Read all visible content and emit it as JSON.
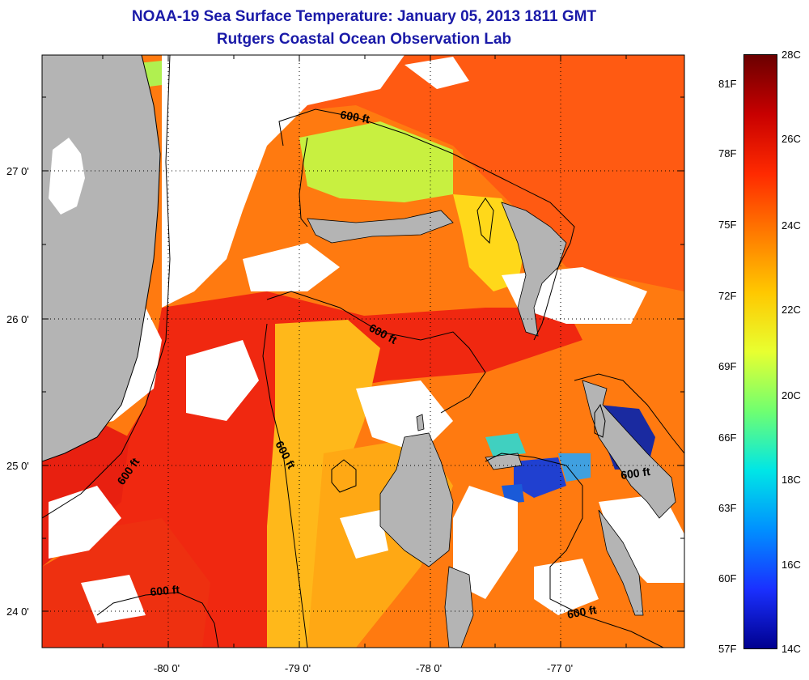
{
  "header": {
    "title": "NOAA-19 Sea Surface Temperature:  January 05, 2013 1811 GMT",
    "subtitle": "Rutgers Coastal Ocean Observation Lab"
  },
  "map": {
    "lat_ticks": [
      "27 0'",
      "26 0'",
      "25 0'",
      "24 0'"
    ],
    "lon_ticks": [
      "-80 0'",
      "-79 0'",
      "-78 0'",
      "-77 0'"
    ],
    "contour_labels": [
      "600 ft",
      "600 ft",
      "600 ft",
      "600 ft",
      "600 ft",
      "600 ft"
    ]
  },
  "colorbar": {
    "celsius_labels": [
      "28C",
      "26C",
      "24C",
      "22C",
      "20C",
      "18C",
      "16C",
      "14C"
    ],
    "fahrenheit_labels": [
      "81F",
      "78F",
      "75F",
      "72F",
      "69F",
      "66F",
      "63F",
      "60F",
      "57F"
    ],
    "colors": [
      "#6b0000",
      "#c80000",
      "#ff2a00",
      "#ff7a00",
      "#ffc800",
      "#e8ff30",
      "#70ff70",
      "#00e6e6",
      "#0090ff",
      "#1a30ff",
      "#00008f"
    ]
  },
  "colors": {
    "land": "#b4b4b4",
    "cloud": "#ffffff",
    "title": "#1a1aa8"
  }
}
